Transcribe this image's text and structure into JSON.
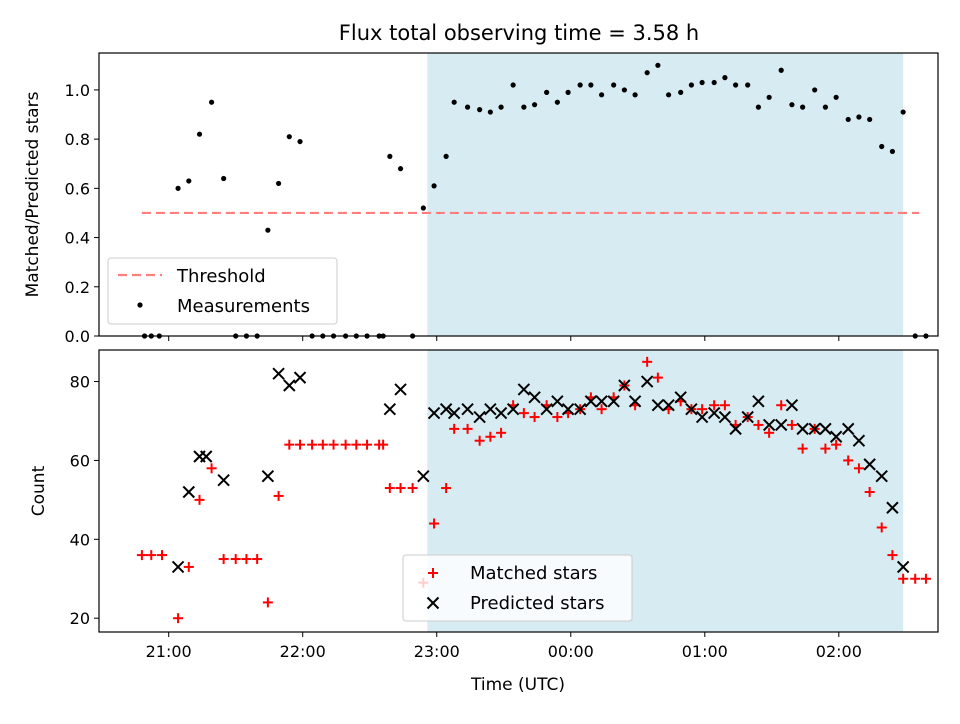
{
  "figure": {
    "title": "Flux total observing time = 3.58 h",
    "xlabel": "Time (UTC)"
  },
  "colors": {
    "shade": "#add8e6",
    "threshold": "#ff7f7f",
    "matched": "#ff0000",
    "predicted": "#000000",
    "measurement": "#000000"
  },
  "chart_data": [
    {
      "type": "scatter",
      "panel": "top",
      "title": "Flux total observing time = 3.58 h",
      "ylabel": "Matched/Predicted stars",
      "xlabel": "",
      "x_unit": "hours since 20:00 UTC (ticks 21:00..02:00)",
      "xlim": [
        0.48,
        6.74
      ],
      "ylim": [
        0,
        1.15
      ],
      "yticks": [
        "0.0",
        "0.2",
        "0.4",
        "0.6",
        "0.8",
        "1.0"
      ],
      "xticks": [
        "21:00",
        "22:00",
        "23:00",
        "00:00",
        "01:00",
        "02:00"
      ],
      "grid": false,
      "shaded_interval": [
        2.93,
        6.48
      ],
      "threshold": {
        "name": "Threshold",
        "y": 0.5,
        "x": [
          0.8,
          6.6
        ]
      },
      "legend": {
        "placement": "lower-left",
        "entries": [
          "Threshold",
          "Measurements"
        ]
      },
      "series": [
        {
          "name": "Measurements",
          "points": [
            [
              0.82,
              0
            ],
            [
              0.87,
              0
            ],
            [
              0.93,
              0
            ],
            [
              1.07,
              0.6
            ],
            [
              1.15,
              0.63
            ],
            [
              1.23,
              0.82
            ],
            [
              1.32,
              0.95
            ],
            [
              1.41,
              0.64
            ],
            [
              1.5,
              0
            ],
            [
              1.58,
              0
            ],
            [
              1.66,
              0
            ],
            [
              1.74,
              0.43
            ],
            [
              1.82,
              0.62
            ],
            [
              1.9,
              0.81
            ],
            [
              1.98,
              0.79
            ],
            [
              2.07,
              0
            ],
            [
              2.15,
              0
            ],
            [
              2.23,
              0
            ],
            [
              2.32,
              0
            ],
            [
              2.4,
              0
            ],
            [
              2.48,
              0
            ],
            [
              2.57,
              0
            ],
            [
              2.6,
              0
            ],
            [
              2.65,
              0.73
            ],
            [
              2.73,
              0.68
            ],
            [
              2.82,
              0
            ],
            [
              2.9,
              0.52
            ],
            [
              2.98,
              0.61
            ],
            [
              3.07,
              0.73
            ],
            [
              3.13,
              0.95
            ],
            [
              3.23,
              0.93
            ],
            [
              3.32,
              0.92
            ],
            [
              3.4,
              0.91
            ],
            [
              3.48,
              0.93
            ],
            [
              3.57,
              1.02
            ],
            [
              3.65,
              0.93
            ],
            [
              3.73,
              0.94
            ],
            [
              3.82,
              0.99
            ],
            [
              3.9,
              0.95
            ],
            [
              3.98,
              0.99
            ],
            [
              4.07,
              1.02
            ],
            [
              4.15,
              1.02
            ],
            [
              4.23,
              0.98
            ],
            [
              4.32,
              1.02
            ],
            [
              4.4,
              1.0
            ],
            [
              4.48,
              0.98
            ],
            [
              4.57,
              1.07
            ],
            [
              4.65,
              1.1
            ],
            [
              4.73,
              0.98
            ],
            [
              4.82,
              0.99
            ],
            [
              4.9,
              1.02
            ],
            [
              4.98,
              1.03
            ],
            [
              5.07,
              1.03
            ],
            [
              5.15,
              1.05
            ],
            [
              5.23,
              1.02
            ],
            [
              5.32,
              1.02
            ],
            [
              5.4,
              0.93
            ],
            [
              5.48,
              0.97
            ],
            [
              5.57,
              1.08
            ],
            [
              5.65,
              0.94
            ],
            [
              5.73,
              0.93
            ],
            [
              5.82,
              1.0
            ],
            [
              5.9,
              0.93
            ],
            [
              5.98,
              0.97
            ],
            [
              6.07,
              0.88
            ],
            [
              6.15,
              0.89
            ],
            [
              6.23,
              0.88
            ],
            [
              6.32,
              0.77
            ],
            [
              6.4,
              0.75
            ],
            [
              6.48,
              0.91
            ],
            [
              6.57,
              0
            ],
            [
              6.65,
              0
            ]
          ]
        }
      ]
    },
    {
      "type": "scatter",
      "panel": "bottom",
      "title": "",
      "ylabel": "Count",
      "xlabel": "Time (UTC)",
      "x_unit": "hours since 20:00 UTC (ticks 21:00..02:00)",
      "xlim": [
        0.48,
        6.74
      ],
      "ylim": [
        16.5,
        88
      ],
      "yticks": [
        "20",
        "40",
        "60",
        "80"
      ],
      "xticks": [
        "21:00",
        "22:00",
        "23:00",
        "00:00",
        "01:00",
        "02:00"
      ],
      "grid": false,
      "shaded_interval": [
        2.93,
        6.48
      ],
      "legend": {
        "placement": "lower-center",
        "entries": [
          "Matched stars",
          "Predicted stars"
        ]
      },
      "series": [
        {
          "name": "Matched stars",
          "marker": "plus",
          "points": [
            [
              0.8,
              36
            ],
            [
              0.87,
              36
            ],
            [
              0.95,
              36
            ],
            [
              1.07,
              20
            ],
            [
              1.15,
              33
            ],
            [
              1.23,
              50
            ],
            [
              1.32,
              58
            ],
            [
              1.41,
              35
            ],
            [
              1.5,
              35
            ],
            [
              1.58,
              35
            ],
            [
              1.66,
              35
            ],
            [
              1.74,
              24
            ],
            [
              1.82,
              51
            ],
            [
              1.9,
              64
            ],
            [
              1.98,
              64
            ],
            [
              2.07,
              64
            ],
            [
              2.15,
              64
            ],
            [
              2.23,
              64
            ],
            [
              2.32,
              64
            ],
            [
              2.4,
              64
            ],
            [
              2.48,
              64
            ],
            [
              2.57,
              64
            ],
            [
              2.6,
              64
            ],
            [
              2.65,
              53
            ],
            [
              2.73,
              53
            ],
            [
              2.82,
              53
            ],
            [
              2.9,
              29
            ],
            [
              2.98,
              44
            ],
            [
              3.07,
              53
            ],
            [
              3.13,
              68
            ],
            [
              3.23,
              68
            ],
            [
              3.32,
              65
            ],
            [
              3.4,
              66
            ],
            [
              3.48,
              67
            ],
            [
              3.57,
              74
            ],
            [
              3.65,
              72
            ],
            [
              3.73,
              71
            ],
            [
              3.82,
              74
            ],
            [
              3.9,
              71
            ],
            [
              3.98,
              72
            ],
            [
              4.07,
              73
            ],
            [
              4.15,
              76
            ],
            [
              4.23,
              73
            ],
            [
              4.32,
              76
            ],
            [
              4.4,
              79
            ],
            [
              4.48,
              74
            ],
            [
              4.57,
              85
            ],
            [
              4.65,
              81
            ],
            [
              4.73,
              73
            ],
            [
              4.82,
              75
            ],
            [
              4.9,
              73
            ],
            [
              4.98,
              73
            ],
            [
              5.07,
              74
            ],
            [
              5.15,
              74
            ],
            [
              5.23,
              69
            ],
            [
              5.32,
              71
            ],
            [
              5.4,
              69
            ],
            [
              5.48,
              67
            ],
            [
              5.57,
              74
            ],
            [
              5.65,
              69
            ],
            [
              5.73,
              63
            ],
            [
              5.82,
              68
            ],
            [
              5.9,
              63
            ],
            [
              5.98,
              64
            ],
            [
              6.07,
              60
            ],
            [
              6.15,
              58
            ],
            [
              6.23,
              52
            ],
            [
              6.32,
              43
            ],
            [
              6.4,
              36
            ],
            [
              6.48,
              30
            ],
            [
              6.57,
              30
            ],
            [
              6.65,
              30
            ]
          ]
        },
        {
          "name": "Predicted stars",
          "marker": "x",
          "points": [
            [
              1.07,
              33
            ],
            [
              1.15,
              52
            ],
            [
              1.23,
              61
            ],
            [
              1.28,
              61
            ],
            [
              1.41,
              55
            ],
            [
              1.74,
              56
            ],
            [
              1.82,
              82
            ],
            [
              1.9,
              79
            ],
            [
              1.98,
              81
            ],
            [
              2.65,
              73
            ],
            [
              2.73,
              78
            ],
            [
              2.9,
              56
            ],
            [
              2.98,
              72
            ],
            [
              3.07,
              73
            ],
            [
              3.13,
              72
            ],
            [
              3.23,
              73
            ],
            [
              3.32,
              71
            ],
            [
              3.4,
              73
            ],
            [
              3.48,
              72
            ],
            [
              3.57,
              73
            ],
            [
              3.65,
              78
            ],
            [
              3.73,
              76
            ],
            [
              3.82,
              73
            ],
            [
              3.9,
              75
            ],
            [
              3.98,
              73
            ],
            [
              4.07,
              73
            ],
            [
              4.15,
              75
            ],
            [
              4.23,
              75
            ],
            [
              4.32,
              75
            ],
            [
              4.4,
              79
            ],
            [
              4.48,
              75
            ],
            [
              4.57,
              80
            ],
            [
              4.65,
              74
            ],
            [
              4.73,
              74
            ],
            [
              4.82,
              76
            ],
            [
              4.9,
              73
            ],
            [
              4.98,
              71
            ],
            [
              5.07,
              72
            ],
            [
              5.15,
              71
            ],
            [
              5.23,
              68
            ],
            [
              5.32,
              71
            ],
            [
              5.4,
              75
            ],
            [
              5.48,
              69
            ],
            [
              5.57,
              69
            ],
            [
              5.65,
              74
            ],
            [
              5.73,
              68
            ],
            [
              5.82,
              68
            ],
            [
              5.9,
              68
            ],
            [
              5.98,
              66
            ],
            [
              6.07,
              68
            ],
            [
              6.15,
              65
            ],
            [
              6.23,
              59
            ],
            [
              6.32,
              56
            ],
            [
              6.4,
              48
            ],
            [
              6.48,
              33
            ]
          ]
        }
      ]
    }
  ]
}
